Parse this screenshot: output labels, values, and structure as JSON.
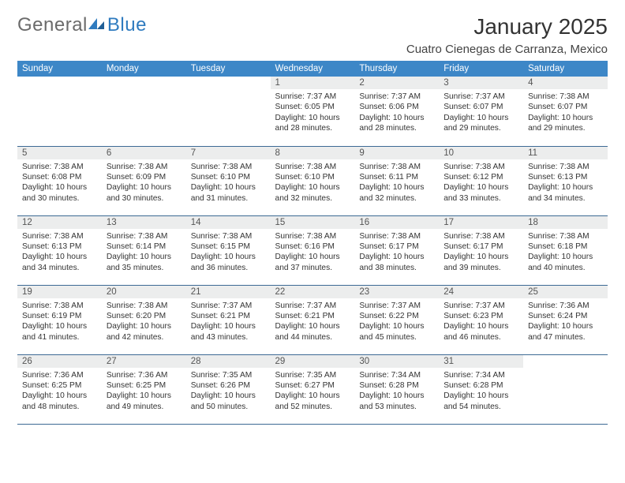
{
  "logo": {
    "text_general": "General",
    "text_blue": "Blue"
  },
  "title": "January 2025",
  "location": "Cuatro Cienegas de Carranza, Mexico",
  "colors": {
    "header_bg": "#3d87c7",
    "header_fg": "#ffffff",
    "daynum_bg": "#eceded",
    "row_border": "#3d6a94",
    "logo_blue": "#2f7bbf",
    "logo_grey": "#6b6b6b"
  },
  "weekdays": [
    "Sunday",
    "Monday",
    "Tuesday",
    "Wednesday",
    "Thursday",
    "Friday",
    "Saturday"
  ],
  "weeks": [
    [
      null,
      null,
      null,
      {
        "d": "1",
        "sr": "7:37 AM",
        "ss": "6:05 PM",
        "dl": "10 hours and 28 minutes."
      },
      {
        "d": "2",
        "sr": "7:37 AM",
        "ss": "6:06 PM",
        "dl": "10 hours and 28 minutes."
      },
      {
        "d": "3",
        "sr": "7:37 AM",
        "ss": "6:07 PM",
        "dl": "10 hours and 29 minutes."
      },
      {
        "d": "4",
        "sr": "7:38 AM",
        "ss": "6:07 PM",
        "dl": "10 hours and 29 minutes."
      }
    ],
    [
      {
        "d": "5",
        "sr": "7:38 AM",
        "ss": "6:08 PM",
        "dl": "10 hours and 30 minutes."
      },
      {
        "d": "6",
        "sr": "7:38 AM",
        "ss": "6:09 PM",
        "dl": "10 hours and 30 minutes."
      },
      {
        "d": "7",
        "sr": "7:38 AM",
        "ss": "6:10 PM",
        "dl": "10 hours and 31 minutes."
      },
      {
        "d": "8",
        "sr": "7:38 AM",
        "ss": "6:10 PM",
        "dl": "10 hours and 32 minutes."
      },
      {
        "d": "9",
        "sr": "7:38 AM",
        "ss": "6:11 PM",
        "dl": "10 hours and 32 minutes."
      },
      {
        "d": "10",
        "sr": "7:38 AM",
        "ss": "6:12 PM",
        "dl": "10 hours and 33 minutes."
      },
      {
        "d": "11",
        "sr": "7:38 AM",
        "ss": "6:13 PM",
        "dl": "10 hours and 34 minutes."
      }
    ],
    [
      {
        "d": "12",
        "sr": "7:38 AM",
        "ss": "6:13 PM",
        "dl": "10 hours and 34 minutes."
      },
      {
        "d": "13",
        "sr": "7:38 AM",
        "ss": "6:14 PM",
        "dl": "10 hours and 35 minutes."
      },
      {
        "d": "14",
        "sr": "7:38 AM",
        "ss": "6:15 PM",
        "dl": "10 hours and 36 minutes."
      },
      {
        "d": "15",
        "sr": "7:38 AM",
        "ss": "6:16 PM",
        "dl": "10 hours and 37 minutes."
      },
      {
        "d": "16",
        "sr": "7:38 AM",
        "ss": "6:17 PM",
        "dl": "10 hours and 38 minutes."
      },
      {
        "d": "17",
        "sr": "7:38 AM",
        "ss": "6:17 PM",
        "dl": "10 hours and 39 minutes."
      },
      {
        "d": "18",
        "sr": "7:38 AM",
        "ss": "6:18 PM",
        "dl": "10 hours and 40 minutes."
      }
    ],
    [
      {
        "d": "19",
        "sr": "7:38 AM",
        "ss": "6:19 PM",
        "dl": "10 hours and 41 minutes."
      },
      {
        "d": "20",
        "sr": "7:38 AM",
        "ss": "6:20 PM",
        "dl": "10 hours and 42 minutes."
      },
      {
        "d": "21",
        "sr": "7:37 AM",
        "ss": "6:21 PM",
        "dl": "10 hours and 43 minutes."
      },
      {
        "d": "22",
        "sr": "7:37 AM",
        "ss": "6:21 PM",
        "dl": "10 hours and 44 minutes."
      },
      {
        "d": "23",
        "sr": "7:37 AM",
        "ss": "6:22 PM",
        "dl": "10 hours and 45 minutes."
      },
      {
        "d": "24",
        "sr": "7:37 AM",
        "ss": "6:23 PM",
        "dl": "10 hours and 46 minutes."
      },
      {
        "d": "25",
        "sr": "7:36 AM",
        "ss": "6:24 PM",
        "dl": "10 hours and 47 minutes."
      }
    ],
    [
      {
        "d": "26",
        "sr": "7:36 AM",
        "ss": "6:25 PM",
        "dl": "10 hours and 48 minutes."
      },
      {
        "d": "27",
        "sr": "7:36 AM",
        "ss": "6:25 PM",
        "dl": "10 hours and 49 minutes."
      },
      {
        "d": "28",
        "sr": "7:35 AM",
        "ss": "6:26 PM",
        "dl": "10 hours and 50 minutes."
      },
      {
        "d": "29",
        "sr": "7:35 AM",
        "ss": "6:27 PM",
        "dl": "10 hours and 52 minutes."
      },
      {
        "d": "30",
        "sr": "7:34 AM",
        "ss": "6:28 PM",
        "dl": "10 hours and 53 minutes."
      },
      {
        "d": "31",
        "sr": "7:34 AM",
        "ss": "6:28 PM",
        "dl": "10 hours and 54 minutes."
      },
      null
    ]
  ],
  "labels": {
    "sunrise": "Sunrise:",
    "sunset": "Sunset:",
    "daylight": "Daylight:"
  }
}
